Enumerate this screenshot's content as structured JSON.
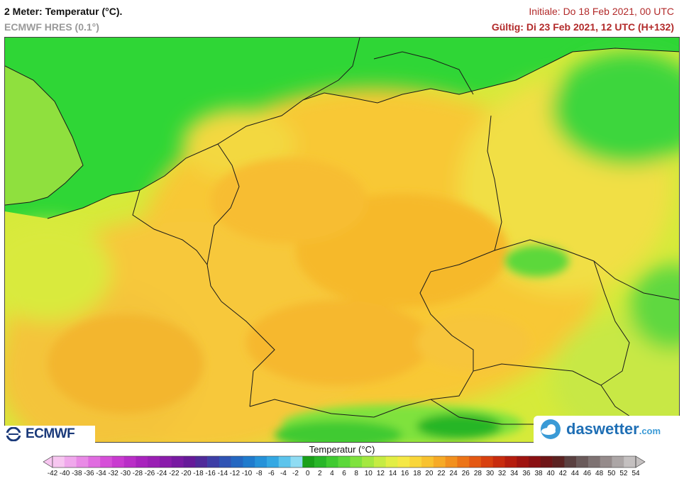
{
  "header": {
    "title": "2 Meter: Temperatur (°C).",
    "model": "ECMWF HRES (0.1°)",
    "init": "Initiale: Do 18 Feb 2021, 00 UTC",
    "valid": "Gültig: Di 23 Feb 2021, 12 UTC (H+132)"
  },
  "logos": {
    "left": "ECMWF",
    "right_main": "daswetter",
    "right_suffix": ".com"
  },
  "legend": {
    "title": "Temperatur (°C)",
    "ticks": [
      "-42",
      "-40",
      "-38",
      "-36",
      "-34",
      "-32",
      "-30",
      "-28",
      "-26",
      "-24",
      "-22",
      "-20",
      "-18",
      "-16",
      "-14",
      "-12",
      "-10",
      "-8",
      "-6",
      "-4",
      "-2",
      "0",
      "2",
      "4",
      "6",
      "8",
      "10",
      "12",
      "14",
      "16",
      "18",
      "20",
      "22",
      "24",
      "26",
      "28",
      "30",
      "32",
      "34",
      "36",
      "38",
      "40",
      "42",
      "44",
      "46",
      "48",
      "50",
      "52",
      "54"
    ],
    "colors": [
      "#f7c6f0",
      "#f0a8ec",
      "#e98ae6",
      "#e06ce0",
      "#d64fd8",
      "#c93bd0",
      "#b92ec7",
      "#a823bd",
      "#9a1fb4",
      "#8a1cab",
      "#781aa2",
      "#661a99",
      "#4f2a9a",
      "#3d3ea6",
      "#2f53b4",
      "#2467c1",
      "#1f7bcd",
      "#2592d9",
      "#33a8e3",
      "#5cc4ec",
      "#8fdcf3",
      "#1aa01a",
      "#28b628",
      "#3fca30",
      "#5bd83a",
      "#7fe23e",
      "#a4e840",
      "#c6ec42",
      "#e2ee44",
      "#f5e845",
      "#f9d63a",
      "#f8c22f",
      "#f6aa26",
      "#f2901e",
      "#ec7417",
      "#e45812",
      "#d8400f",
      "#c82c0e",
      "#b51d0e",
      "#9f1410",
      "#8a1012",
      "#6f1517",
      "#5b2221",
      "#5a4040",
      "#6a5a5a",
      "#7e7272",
      "#958b8b",
      "#aca6a6",
      "#c4c0c0"
    ]
  }
}
